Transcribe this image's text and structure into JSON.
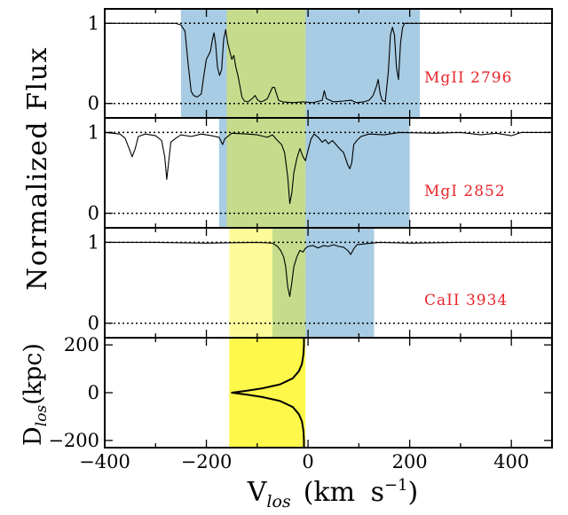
{
  "figure": {
    "ylabel_flux": "Normalized Flux",
    "ylabel_dist_main": "D",
    "ylabel_dist_sub": "los",
    "ylabel_dist_unit": "(kpc)",
    "xlabel_main": "V",
    "xlabel_sub": "los",
    "xlabel_unit": "(km s",
    "xlabel_exp": "−1",
    "xlabel_close": ")"
  },
  "colors": {
    "blue": "#a7cce3",
    "green": "#c6dc8c",
    "light_yellow": "#fdfb99",
    "yellow": "#fdf84a",
    "label_red": "#e8262a"
  },
  "chart_data": [
    {
      "type": "line",
      "label": "MgII 2796",
      "xlim": [
        -400,
        480
      ],
      "ylim": [
        -0.18,
        1.18
      ],
      "yticks": [
        "0",
        "1"
      ],
      "continuum": 1,
      "zero_line": 0,
      "shaded_regions": [
        {
          "x0": -250,
          "x1": 220,
          "color": "blue"
        },
        {
          "x0": -160,
          "x1": -5,
          "color": "green"
        }
      ],
      "flux_points": [
        [
          -400,
          1.0
        ],
        [
          -260,
          1.0
        ],
        [
          -250,
          0.98
        ],
        [
          -242,
          0.9
        ],
        [
          -236,
          0.5
        ],
        [
          -230,
          0.15
        ],
        [
          -225,
          0.1
        ],
        [
          -218,
          0.08
        ],
        [
          -210,
          0.12
        ],
        [
          -205,
          0.35
        ],
        [
          -200,
          0.55
        ],
        [
          -196,
          0.6
        ],
        [
          -192,
          0.65
        ],
        [
          -188,
          0.8
        ],
        [
          -185,
          0.88
        ],
        [
          -182,
          0.75
        ],
        [
          -178,
          0.45
        ],
        [
          -174,
          0.35
        ],
        [
          -170,
          0.42
        ],
        [
          -166,
          0.8
        ],
        [
          -162,
          0.92
        ],
        [
          -158,
          0.75
        ],
        [
          -154,
          0.65
        ],
        [
          -150,
          0.55
        ],
        [
          -146,
          0.6
        ],
        [
          -142,
          0.45
        ],
        [
          -138,
          0.35
        ],
        [
          -134,
          0.22
        ],
        [
          -130,
          0.08
        ],
        [
          -125,
          0.03
        ],
        [
          -118,
          0.02
        ],
        [
          -110,
          0.06
        ],
        [
          -104,
          0.1
        ],
        [
          -100,
          0.05
        ],
        [
          -94,
          0.02
        ],
        [
          -88,
          0.03
        ],
        [
          -80,
          0.06
        ],
        [
          -75,
          0.13
        ],
        [
          -70,
          0.2
        ],
        [
          -66,
          0.2
        ],
        [
          -62,
          0.12
        ],
        [
          -58,
          0.04
        ],
        [
          -50,
          0.02
        ],
        [
          -30,
          0.01
        ],
        [
          -10,
          0.02
        ],
        [
          10,
          0.01
        ],
        [
          28,
          0.04
        ],
        [
          32,
          0.16
        ],
        [
          36,
          0.06
        ],
        [
          50,
          0.02
        ],
        [
          70,
          0.03
        ],
        [
          85,
          0.04
        ],
        [
          95,
          0.01
        ],
        [
          110,
          0.02
        ],
        [
          120,
          0.04
        ],
        [
          128,
          0.1
        ],
        [
          134,
          0.2
        ],
        [
          138,
          0.3
        ],
        [
          142,
          0.12
        ],
        [
          146,
          0.04
        ],
        [
          152,
          0.02
        ],
        [
          158,
          0.4
        ],
        [
          162,
          0.85
        ],
        [
          166,
          0.95
        ],
        [
          170,
          0.85
        ],
        [
          174,
          0.45
        ],
        [
          178,
          0.3
        ],
        [
          182,
          0.75
        ],
        [
          186,
          0.95
        ],
        [
          190,
          1.0
        ],
        [
          480,
          1.0
        ]
      ]
    },
    {
      "type": "line",
      "label": "MgI 2852",
      "xlim": [
        -400,
        480
      ],
      "ylim": [
        -0.18,
        1.18
      ],
      "yticks": [
        "0",
        "1"
      ],
      "continuum": 1,
      "zero_line": 0,
      "shaded_regions": [
        {
          "x0": -175,
          "x1": 200,
          "color": "blue"
        },
        {
          "x0": -160,
          "x1": -5,
          "color": "green"
        }
      ],
      "flux_points": [
        [
          -400,
          1.0
        ],
        [
          -370,
          0.98
        ],
        [
          -360,
          0.93
        ],
        [
          -352,
          0.8
        ],
        [
          -346,
          0.7
        ],
        [
          -340,
          0.8
        ],
        [
          -334,
          0.95
        ],
        [
          -320,
          0.98
        ],
        [
          -300,
          0.96
        ],
        [
          -288,
          0.9
        ],
        [
          -282,
          0.7
        ],
        [
          -278,
          0.42
        ],
        [
          -274,
          0.65
        ],
        [
          -270,
          0.88
        ],
        [
          -262,
          0.92
        ],
        [
          -250,
          0.97
        ],
        [
          -230,
          0.95
        ],
        [
          -210,
          0.98
        ],
        [
          -190,
          0.96
        ],
        [
          -175,
          0.94
        ],
        [
          -168,
          0.85
        ],
        [
          -164,
          0.92
        ],
        [
          -150,
          0.99
        ],
        [
          -120,
          0.98
        ],
        [
          -100,
          0.97
        ],
        [
          -80,
          0.94
        ],
        [
          -70,
          0.97
        ],
        [
          -60,
          0.9
        ],
        [
          -52,
          0.85
        ],
        [
          -46,
          0.75
        ],
        [
          -40,
          0.45
        ],
        [
          -36,
          0.12
        ],
        [
          -32,
          0.25
        ],
        [
          -28,
          0.5
        ],
        [
          -22,
          0.68
        ],
        [
          -16,
          0.8
        ],
        [
          -10,
          0.7
        ],
        [
          -5,
          0.65
        ],
        [
          0,
          0.78
        ],
        [
          6,
          0.92
        ],
        [
          12,
          0.98
        ],
        [
          20,
          0.94
        ],
        [
          28,
          0.88
        ],
        [
          34,
          0.91
        ],
        [
          40,
          0.86
        ],
        [
          48,
          0.9
        ],
        [
          55,
          0.85
        ],
        [
          62,
          0.8
        ],
        [
          70,
          0.75
        ],
        [
          78,
          0.6
        ],
        [
          82,
          0.55
        ],
        [
          86,
          0.62
        ],
        [
          90,
          0.85
        ],
        [
          96,
          0.9
        ],
        [
          104,
          0.95
        ],
        [
          120,
          0.98
        ],
        [
          150,
          0.97
        ],
        [
          180,
          1.0
        ],
        [
          250,
          0.99
        ],
        [
          300,
          1.0
        ],
        [
          340,
          0.97
        ],
        [
          370,
          0.99
        ],
        [
          400,
          0.96
        ],
        [
          420,
          1.0
        ],
        [
          480,
          1.0
        ]
      ]
    },
    {
      "type": "line",
      "label": "CaII 3934",
      "xlim": [
        -400,
        480
      ],
      "ylim": [
        -0.18,
        1.18
      ],
      "yticks": [
        "0",
        "1"
      ],
      "continuum": 1,
      "zero_line": 0,
      "shaded_regions": [
        {
          "x0": -70,
          "x1": 130,
          "color": "blue"
        },
        {
          "x0": -155,
          "x1": -70,
          "color": "light_yellow"
        },
        {
          "x0": -70,
          "x1": -5,
          "color": "green"
        }
      ],
      "flux_points": [
        [
          -400,
          1.0
        ],
        [
          -300,
          1.0
        ],
        [
          -200,
          0.99
        ],
        [
          -100,
          1.0
        ],
        [
          -70,
          0.99
        ],
        [
          -60,
          0.95
        ],
        [
          -54,
          0.9
        ],
        [
          -48,
          0.82
        ],
        [
          -44,
          0.7
        ],
        [
          -40,
          0.45
        ],
        [
          -36,
          0.33
        ],
        [
          -32,
          0.5
        ],
        [
          -28,
          0.7
        ],
        [
          -22,
          0.82
        ],
        [
          -16,
          0.9
        ],
        [
          -10,
          0.88
        ],
        [
          -6,
          0.92
        ],
        [
          0,
          0.95
        ],
        [
          10,
          0.96
        ],
        [
          20,
          0.93
        ],
        [
          30,
          0.96
        ],
        [
          40,
          0.95
        ],
        [
          50,
          0.97
        ],
        [
          60,
          0.95
        ],
        [
          70,
          0.94
        ],
        [
          78,
          0.9
        ],
        [
          84,
          0.85
        ],
        [
          90,
          0.92
        ],
        [
          96,
          0.97
        ],
        [
          110,
          0.98
        ],
        [
          140,
          1.0
        ],
        [
          200,
          0.99
        ],
        [
          300,
          1.0
        ],
        [
          400,
          1.0
        ],
        [
          480,
          1.0
        ]
      ]
    },
    {
      "type": "line",
      "xlim": [
        -400,
        480
      ],
      "ylim": [
        -230,
        230
      ],
      "yticks": [
        "−200",
        "0",
        "200"
      ],
      "xticks": [
        "−400",
        "−200",
        "0",
        "200",
        "400"
      ],
      "shaded_regions": [
        {
          "x0": -155,
          "x1": -5,
          "color": "yellow"
        }
      ],
      "curve_description": "velocity vs line-of-sight distance",
      "curve_points": [
        [
          -8,
          230
        ],
        [
          -8,
          200
        ],
        [
          -9,
          160
        ],
        [
          -12,
          120
        ],
        [
          -18,
          90
        ],
        [
          -30,
          60
        ],
        [
          -55,
          35
        ],
        [
          -90,
          18
        ],
        [
          -120,
          8
        ],
        [
          -150,
          0
        ],
        [
          -120,
          -8
        ],
        [
          -90,
          -18
        ],
        [
          -55,
          -35
        ],
        [
          -30,
          -60
        ],
        [
          -18,
          -90
        ],
        [
          -12,
          -120
        ],
        [
          -9,
          -160
        ],
        [
          -8,
          -200
        ],
        [
          -8,
          -230
        ]
      ]
    }
  ]
}
